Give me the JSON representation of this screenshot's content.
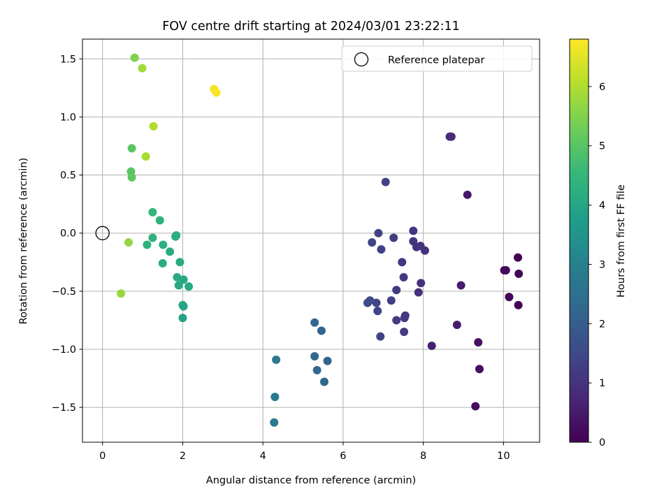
{
  "chart_data": {
    "type": "scatter",
    "title": "FOV centre drift starting at 2024/03/01 23:22:11",
    "xlabel": "Angular distance from reference (arcmin)",
    "ylabel": "Rotation from reference (arcmin)",
    "xlim": [
      -0.5,
      10.9
    ],
    "ylim": [
      -1.8,
      1.67
    ],
    "x_ticks": [
      0,
      2,
      4,
      6,
      8,
      10
    ],
    "x_tick_labels": [
      "0",
      "2",
      "4",
      "6",
      "8",
      "10"
    ],
    "y_ticks": [
      -1.5,
      -1.0,
      -0.5,
      0.0,
      0.5,
      1.0,
      1.5
    ],
    "y_tick_labels": [
      "−1.5",
      "−1.0",
      "−0.5",
      "0.0",
      "0.5",
      "1.0",
      "1.5"
    ],
    "grid": true,
    "colormap": "viridis",
    "colorbar": {
      "label": "Hours from first FF file",
      "range": [
        0,
        6.8
      ],
      "ticks": [
        0,
        1,
        2,
        3,
        4,
        5,
        6
      ],
      "tick_labels": [
        "0",
        "1",
        "2",
        "3",
        "4",
        "5",
        "6"
      ]
    },
    "legend": {
      "position": "top-right",
      "entries": [
        {
          "label": "Reference platepar",
          "marker": "open-circle"
        }
      ]
    },
    "reference_point": {
      "x": 0,
      "y": 0
    },
    "points": [
      {
        "x": 9.3,
        "y": -1.49,
        "c": 0.2
      },
      {
        "x": 9.4,
        "y": -1.17,
        "c": 0.25
      },
      {
        "x": 9.37,
        "y": -0.94,
        "c": 0.3
      },
      {
        "x": 10.37,
        "y": -0.62,
        "c": 0.05
      },
      {
        "x": 10.14,
        "y": -0.55,
        "c": 0.1
      },
      {
        "x": 10.38,
        "y": -0.35,
        "c": 0.05
      },
      {
        "x": 10.36,
        "y": -0.21,
        "c": 0.0
      },
      {
        "x": 10.02,
        "y": -0.32,
        "c": 0.15
      },
      {
        "x": 10.06,
        "y": -0.32,
        "c": 0.15
      },
      {
        "x": 9.1,
        "y": 0.33,
        "c": 0.45
      },
      {
        "x": 8.84,
        "y": -0.79,
        "c": 0.5
      },
      {
        "x": 8.94,
        "y": -0.45,
        "c": 0.55
      },
      {
        "x": 8.66,
        "y": 0.83,
        "c": 0.85
      },
      {
        "x": 8.7,
        "y": 0.83,
        "c": 0.85
      },
      {
        "x": 8.21,
        "y": -0.97,
        "c": 0.6
      },
      {
        "x": 7.94,
        "y": -0.43,
        "c": 0.9
      },
      {
        "x": 7.88,
        "y": -0.51,
        "c": 0.95
      },
      {
        "x": 8.04,
        "y": -0.15,
        "c": 0.95
      },
      {
        "x": 7.93,
        "y": -0.11,
        "c": 1.0
      },
      {
        "x": 7.83,
        "y": -0.12,
        "c": 1.0
      },
      {
        "x": 7.75,
        "y": -0.07,
        "c": 1.05
      },
      {
        "x": 7.75,
        "y": 0.02,
        "c": 1.05
      },
      {
        "x": 7.51,
        "y": -0.38,
        "c": 1.1
      },
      {
        "x": 7.47,
        "y": -0.25,
        "c": 1.1
      },
      {
        "x": 7.55,
        "y": -0.71,
        "c": 1.15
      },
      {
        "x": 7.53,
        "y": -0.73,
        "c": 1.15
      },
      {
        "x": 7.52,
        "y": -0.85,
        "c": 1.15
      },
      {
        "x": 7.33,
        "y": -0.75,
        "c": 1.2
      },
      {
        "x": 7.33,
        "y": -0.49,
        "c": 1.2
      },
      {
        "x": 7.2,
        "y": -0.58,
        "c": 1.25
      },
      {
        "x": 7.26,
        "y": -0.04,
        "c": 1.2
      },
      {
        "x": 7.06,
        "y": 0.44,
        "c": 1.3
      },
      {
        "x": 6.93,
        "y": -0.89,
        "c": 1.3
      },
      {
        "x": 6.95,
        "y": -0.14,
        "c": 1.3
      },
      {
        "x": 6.88,
        "y": 0.0,
        "c": 1.35
      },
      {
        "x": 6.72,
        "y": -0.08,
        "c": 1.4
      },
      {
        "x": 6.83,
        "y": -0.6,
        "c": 1.4
      },
      {
        "x": 6.86,
        "y": -0.67,
        "c": 1.4
      },
      {
        "x": 6.67,
        "y": -0.58,
        "c": 1.5
      },
      {
        "x": 6.61,
        "y": -0.6,
        "c": 1.5
      },
      {
        "x": 5.61,
        "y": -1.1,
        "c": 2.2
      },
      {
        "x": 5.53,
        "y": -1.28,
        "c": 2.25
      },
      {
        "x": 5.46,
        "y": -0.84,
        "c": 2.2
      },
      {
        "x": 5.29,
        "y": -0.77,
        "c": 2.3
      },
      {
        "x": 5.29,
        "y": -1.06,
        "c": 2.3
      },
      {
        "x": 5.35,
        "y": -1.18,
        "c": 2.3
      },
      {
        "x": 4.33,
        "y": -1.09,
        "c": 2.75
      },
      {
        "x": 4.3,
        "y": -1.41,
        "c": 2.75
      },
      {
        "x": 4.28,
        "y": -1.63,
        "c": 2.75
      },
      {
        "x": 2.0,
        "y": -0.62,
        "c": 4.0
      },
      {
        "x": 2.02,
        "y": -0.63,
        "c": 4.0
      },
      {
        "x": 2.0,
        "y": -0.73,
        "c": 3.9
      },
      {
        "x": 2.15,
        "y": -0.46,
        "c": 4.05
      },
      {
        "x": 2.02,
        "y": -0.4,
        "c": 4.05
      },
      {
        "x": 1.9,
        "y": -0.45,
        "c": 4.1
      },
      {
        "x": 1.86,
        "y": -0.38,
        "c": 4.15
      },
      {
        "x": 1.93,
        "y": -0.25,
        "c": 4.15
      },
      {
        "x": 1.68,
        "y": -0.16,
        "c": 4.2
      },
      {
        "x": 1.82,
        "y": -0.03,
        "c": 4.25
      },
      {
        "x": 1.84,
        "y": -0.02,
        "c": 4.25
      },
      {
        "x": 1.51,
        "y": -0.1,
        "c": 4.25
      },
      {
        "x": 1.5,
        "y": -0.26,
        "c": 4.2
      },
      {
        "x": 1.43,
        "y": 0.11,
        "c": 4.35
      },
      {
        "x": 1.25,
        "y": -0.04,
        "c": 4.35
      },
      {
        "x": 1.11,
        "y": -0.1,
        "c": 4.4
      },
      {
        "x": 1.25,
        "y": 0.18,
        "c": 4.45
      },
      {
        "x": 0.71,
        "y": 0.53,
        "c": 5.0
      },
      {
        "x": 0.73,
        "y": 0.48,
        "c": 5.1
      },
      {
        "x": 0.73,
        "y": 0.73,
        "c": 5.0
      },
      {
        "x": 0.8,
        "y": 1.51,
        "c": 5.5
      },
      {
        "x": 0.99,
        "y": 1.42,
        "c": 5.85
      },
      {
        "x": 1.27,
        "y": 0.92,
        "c": 6.0
      },
      {
        "x": 1.08,
        "y": 0.66,
        "c": 5.9
      },
      {
        "x": 0.65,
        "y": -0.08,
        "c": 5.7
      },
      {
        "x": 0.46,
        "y": -0.52,
        "c": 5.75
      },
      {
        "x": 2.78,
        "y": 1.24,
        "c": 6.65
      },
      {
        "x": 2.84,
        "y": 1.21,
        "c": 6.75
      }
    ]
  }
}
